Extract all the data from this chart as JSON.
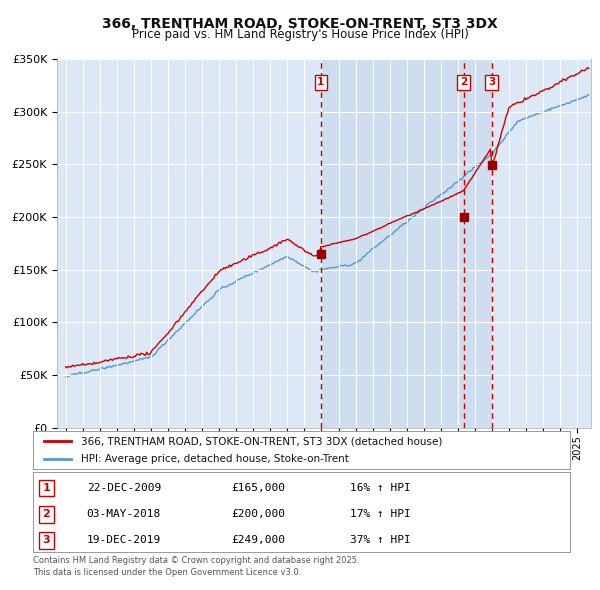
{
  "title": "366, TRENTHAM ROAD, STOKE-ON-TRENT, ST3 3DX",
  "subtitle": "Price paid vs. HM Land Registry's House Price Index (HPI)",
  "legend_line1": "366, TRENTHAM ROAD, STOKE-ON-TRENT, ST3 3DX (detached house)",
  "legend_line2": "HPI: Average price, detached house, Stoke-on-Trent",
  "footer": "Contains HM Land Registry data © Crown copyright and database right 2025.\nThis data is licensed under the Open Government Licence v3.0.",
  "sales": [
    {
      "label": "1",
      "date": "22-DEC-2009",
      "price": 165000,
      "hpi_diff": "16% ↑ HPI",
      "x_year": 2009.97
    },
    {
      "label": "2",
      "date": "03-MAY-2018",
      "price": 200000,
      "hpi_diff": "17% ↑ HPI",
      "x_year": 2018.34
    },
    {
      "label": "3",
      "date": "19-DEC-2019",
      "price": 249000,
      "hpi_diff": "37% ↑ HPI",
      "x_year": 2019.97
    }
  ],
  "red_line_color": "#cc0000",
  "blue_line_color": "#5599cc",
  "plot_bg_color": "#dce8f5",
  "grid_color": "#ffffff",
  "shade_color": "#c5d8ee",
  "ylim": [
    0,
    350000
  ],
  "yticks": [
    0,
    50000,
    100000,
    150000,
    200000,
    250000,
    300000,
    350000
  ],
  "xlim_start": 1994.5,
  "xlim_end": 2025.8
}
